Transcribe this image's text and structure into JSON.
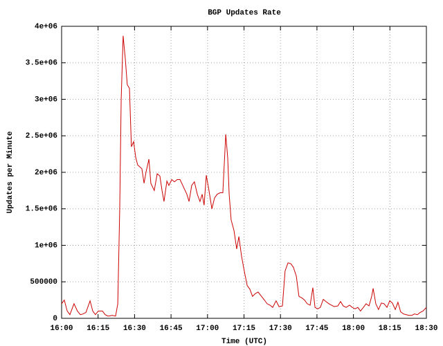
{
  "chart_data": {
    "type": "line",
    "title": "BGP Updates Rate",
    "x_label": "Time (UTC)",
    "y_label": "Updates per Minute",
    "color": "#cc0000",
    "grid": true,
    "xlim": [
      0,
      150
    ],
    "xticks": [
      {
        "value": 0,
        "label": "16:00"
      },
      {
        "value": 15,
        "label": "16:15"
      },
      {
        "value": 30,
        "label": "16:30"
      },
      {
        "value": 45,
        "label": "16:45"
      },
      {
        "value": 60,
        "label": "17:00"
      },
      {
        "value": 75,
        "label": "17:15"
      },
      {
        "value": 90,
        "label": "17:30"
      },
      {
        "value": 105,
        "label": "17:45"
      },
      {
        "value": 120,
        "label": "18:00"
      },
      {
        "value": 135,
        "label": "18:15"
      },
      {
        "value": 150,
        "label": "18:30"
      }
    ],
    "ylim": [
      0,
      4000000
    ],
    "yticks": [
      0,
      500000,
      {
        "value": 1000000,
        "label": "1e+06"
      },
      {
        "value": 1500000,
        "label": "1.5e+06"
      },
      {
        "value": 2000000,
        "label": "2e+06"
      },
      {
        "value": 2500000,
        "label": "2.5e+06"
      },
      {
        "value": 3000000,
        "label": "3e+06"
      },
      {
        "value": 3500000,
        "label": "3.5e+06"
      },
      {
        "value": 4000000,
        "label": "4e+06"
      }
    ],
    "x": [
      0,
      1.1,
      2.3,
      3.4,
      5.1,
      6.5,
      7.7,
      8.8,
      10,
      11.7,
      12.8,
      13.9,
      15.1,
      16.8,
      17.9,
      19.1,
      20.8,
      22.2,
      23.1,
      23.9,
      24.5,
      25.3,
      26.2,
      27,
      27.9,
      28.7,
      29.6,
      30.5,
      31.3,
      33,
      33.9,
      34.7,
      35.9,
      36.7,
      38.1,
      39.3,
      40.4,
      41.3,
      42.1,
      43.3,
      44.1,
      45.3,
      46.4,
      47.5,
      48.7,
      50.1,
      51.5,
      52.4,
      53.5,
      54.6,
      55.8,
      56.9,
      57.8,
      58.6,
      59.5,
      60.6,
      61.8,
      62.9,
      64,
      65.2,
      66.3,
      67.5,
      68.3,
      68.9,
      69.7,
      70.9,
      72,
      72.9,
      74,
      75.1,
      76.3,
      77.4,
      78.5,
      79.7,
      80.8,
      82.2,
      83.4,
      84.5,
      85.7,
      86.8,
      88.2,
      89.4,
      90.8,
      91.9,
      93.1,
      94.2,
      95.3,
      96.5,
      97.6,
      98.8,
      99.9,
      101,
      102.2,
      103.3,
      104.2,
      105.3,
      106.4,
      107.6,
      108.7,
      109.9,
      111,
      112.1,
      113.6,
      114.7,
      115.8,
      117,
      118.4,
      119.5,
      120.7,
      121.8,
      122.9,
      124.1,
      125.2,
      126.4,
      127.5,
      128.1,
      129.2,
      130.3,
      131.5,
      132.6,
      133.8,
      134.9,
      136,
      137.2,
      138.3,
      139.4,
      140.6,
      141.7,
      142.9,
      144,
      145.1,
      146.3,
      147.4,
      148.6,
      150
    ],
    "values": [
      200000,
      250000,
      100000,
      50000,
      200000,
      100000,
      50000,
      60000,
      80000,
      240000,
      100000,
      50000,
      100000,
      100000,
      50000,
      30000,
      40000,
      30000,
      200000,
      1500000,
      3000000,
      3870000,
      3550000,
      3200000,
      3150000,
      2350000,
      2420000,
      2200000,
      2100000,
      2050000,
      1850000,
      2000000,
      2180000,
      1850000,
      1750000,
      1980000,
      1950000,
      1750000,
      1600000,
      1880000,
      1820000,
      1900000,
      1870000,
      1900000,
      1900000,
      1800000,
      1700000,
      1600000,
      1820000,
      1870000,
      1700000,
      1600000,
      1700000,
      1550000,
      1960000,
      1750000,
      1500000,
      1650000,
      1700000,
      1720000,
      1720000,
      2520000,
      2200000,
      1700000,
      1350000,
      1200000,
      950000,
      1120000,
      850000,
      650000,
      450000,
      400000,
      300000,
      340000,
      360000,
      300000,
      250000,
      200000,
      180000,
      150000,
      240000,
      160000,
      170000,
      650000,
      760000,
      750000,
      700000,
      580000,
      300000,
      280000,
      250000,
      200000,
      180000,
      420000,
      150000,
      130000,
      150000,
      260000,
      230000,
      200000,
      180000,
      160000,
      170000,
      230000,
      170000,
      150000,
      180000,
      150000,
      130000,
      150000,
      100000,
      150000,
      200000,
      170000,
      300000,
      410000,
      200000,
      120000,
      210000,
      200000,
      150000,
      240000,
      210000,
      120000,
      220000,
      90000,
      60000,
      50000,
      40000,
      40000,
      60000,
      50000,
      80000,
      100000,
      150000
    ]
  }
}
